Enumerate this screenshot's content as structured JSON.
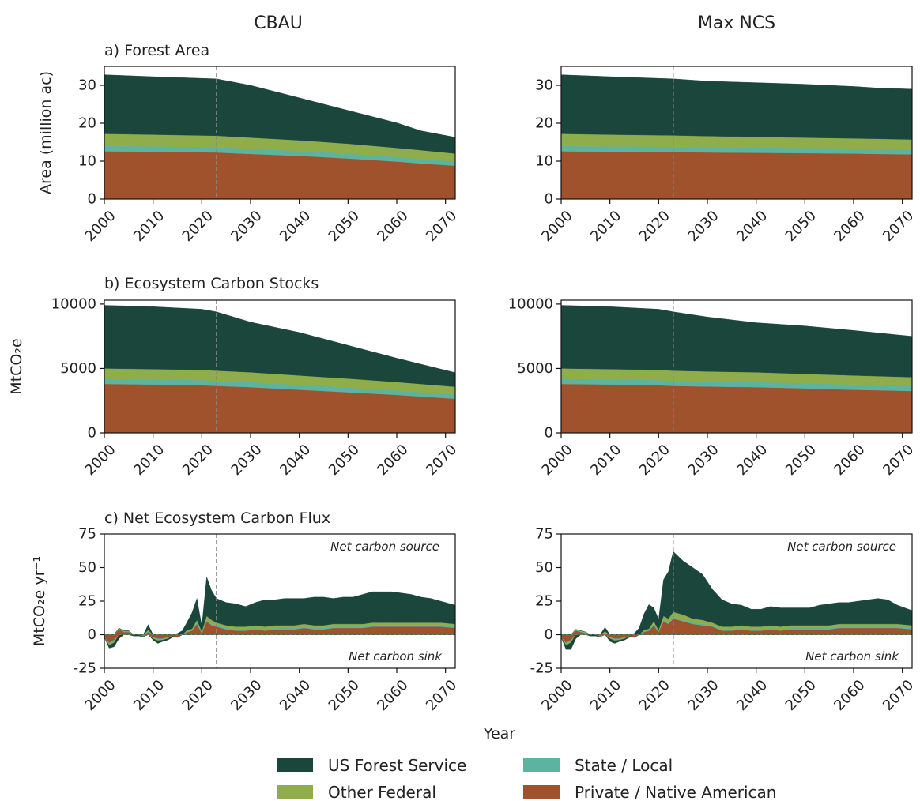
{
  "figure": {
    "column_titles": [
      "CBAU",
      "Max NCS"
    ],
    "xlabel": "Year",
    "colors": {
      "us_forest_service": "#1b463b",
      "state_local": "#5bb3a0",
      "other_federal": "#8fad4a",
      "private_native_american": "#a0522d"
    },
    "vertical_line_year": 2023,
    "legend": [
      {
        "key": "us_forest_service",
        "label": "US Forest Service"
      },
      {
        "key": "state_local",
        "label": "State / Local"
      },
      {
        "key": "other_federal",
        "label": "Other Federal"
      },
      {
        "key": "private_native_american",
        "label": "Private / Native American"
      }
    ]
  },
  "chart_data": [
    {
      "id": "area-cbau",
      "type": "area",
      "stacked": true,
      "title": "a) Forest Area",
      "ylabel": "Area (million ac)",
      "xlim": [
        2000,
        2072
      ],
      "ylim": [
        0,
        35
      ],
      "xticks": [
        2000,
        2010,
        2020,
        2030,
        2040,
        2050,
        2060,
        2070
      ],
      "yticks": [
        0,
        10,
        20,
        30
      ],
      "ytick_labels": [
        "0",
        "10",
        "20",
        "30"
      ],
      "x": [
        2000,
        2010,
        2023,
        2030,
        2040,
        2050,
        2060,
        2065,
        2072
      ],
      "series": [
        {
          "name": "Private / Native American",
          "key": "private_native_american",
          "values": [
            12.6,
            12.5,
            12.3,
            11.9,
            11.4,
            10.7,
            9.9,
            9.4,
            8.8
          ]
        },
        {
          "name": "State / Local",
          "key": "state_local",
          "values": [
            1.4,
            1.4,
            1.4,
            1.4,
            1.3,
            1.3,
            1.2,
            1.2,
            1.1
          ]
        },
        {
          "name": "Other Federal",
          "key": "other_federal",
          "values": [
            3.2,
            3.1,
            3.0,
            2.9,
            2.8,
            2.6,
            2.4,
            2.3,
            2.1
          ]
        },
        {
          "name": "US Forest Service",
          "key": "us_forest_service",
          "values": [
            15.6,
            15.3,
            15.0,
            13.8,
            11.2,
            8.8,
            6.6,
            5.1,
            4.3
          ]
        }
      ]
    },
    {
      "id": "area-maxncs",
      "type": "area",
      "stacked": true,
      "title": "",
      "ylabel": "",
      "xlim": [
        2000,
        2072
      ],
      "ylim": [
        0,
        35
      ],
      "xticks": [
        2000,
        2010,
        2020,
        2030,
        2040,
        2050,
        2060,
        2070
      ],
      "yticks": [
        0,
        10,
        20,
        30
      ],
      "ytick_labels": [
        "0",
        "10",
        "20",
        "30"
      ],
      "x": [
        2000,
        2010,
        2023,
        2030,
        2040,
        2050,
        2060,
        2065,
        2072
      ],
      "series": [
        {
          "name": "Private / Native American",
          "key": "private_native_american",
          "values": [
            12.6,
            12.5,
            12.4,
            12.3,
            12.2,
            12.1,
            12.0,
            11.9,
            11.8
          ]
        },
        {
          "name": "State / Local",
          "key": "state_local",
          "values": [
            1.4,
            1.4,
            1.4,
            1.4,
            1.4,
            1.4,
            1.4,
            1.4,
            1.4
          ]
        },
        {
          "name": "Other Federal",
          "key": "other_federal",
          "values": [
            3.2,
            3.1,
            3.0,
            2.9,
            2.8,
            2.7,
            2.6,
            2.6,
            2.5
          ]
        },
        {
          "name": "US Forest Service",
          "key": "us_forest_service",
          "values": [
            15.6,
            15.3,
            14.9,
            14.5,
            14.3,
            14.1,
            13.7,
            13.4,
            13.3
          ]
        }
      ]
    },
    {
      "id": "stocks-cbau",
      "type": "area",
      "stacked": true,
      "title": "b) Ecosystem Carbon Stocks",
      "ylabel": "MtCO₂e",
      "xlim": [
        2000,
        2072
      ],
      "ylim": [
        0,
        10300
      ],
      "xticks": [
        2000,
        2010,
        2020,
        2030,
        2040,
        2050,
        2060,
        2070
      ],
      "yticks": [
        0,
        5000,
        10000
      ],
      "ytick_labels": [
        "0",
        "5000",
        "10000"
      ],
      "x": [
        2000,
        2010,
        2020,
        2023,
        2030,
        2040,
        2050,
        2060,
        2072
      ],
      "series": [
        {
          "name": "Private / Native American",
          "key": "private_native_american",
          "values": [
            3800,
            3750,
            3700,
            3650,
            3550,
            3350,
            3150,
            2950,
            2650
          ]
        },
        {
          "name": "State / Local",
          "key": "state_local",
          "values": [
            400,
            400,
            400,
            400,
            390,
            380,
            370,
            350,
            330
          ]
        },
        {
          "name": "Other Federal",
          "key": "other_federal",
          "values": [
            800,
            800,
            790,
            780,
            760,
            730,
            700,
            650,
            600
          ]
        },
        {
          "name": "US Forest Service",
          "key": "us_forest_service",
          "values": [
            4900,
            4850,
            4710,
            4570,
            3900,
            3340,
            2580,
            1850,
            1100
          ]
        }
      ]
    },
    {
      "id": "stocks-maxncs",
      "type": "area",
      "stacked": true,
      "title": "",
      "ylabel": "",
      "xlim": [
        2000,
        2072
      ],
      "ylim": [
        0,
        10300
      ],
      "xticks": [
        2000,
        2010,
        2020,
        2030,
        2040,
        2050,
        2060,
        2070
      ],
      "yticks": [
        0,
        5000,
        10000
      ],
      "ytick_labels": [
        "0",
        "5000",
        "10000"
      ],
      "x": [
        2000,
        2010,
        2020,
        2023,
        2030,
        2040,
        2050,
        2060,
        2072
      ],
      "series": [
        {
          "name": "Private / Native American",
          "key": "private_native_american",
          "values": [
            3800,
            3750,
            3700,
            3650,
            3600,
            3550,
            3450,
            3350,
            3250
          ]
        },
        {
          "name": "State / Local",
          "key": "state_local",
          "values": [
            400,
            400,
            400,
            400,
            400,
            400,
            400,
            400,
            400
          ]
        },
        {
          "name": "Other Federal",
          "key": "other_federal",
          "values": [
            800,
            800,
            790,
            780,
            770,
            750,
            730,
            710,
            680
          ]
        },
        {
          "name": "US Forest Service",
          "key": "us_forest_service",
          "values": [
            4900,
            4850,
            4710,
            4570,
            4230,
            3850,
            3720,
            3490,
            3170
          ]
        }
      ]
    },
    {
      "id": "flux-cbau",
      "type": "area",
      "stacked": true,
      "title": "c) Net Ecosystem Carbon Flux",
      "ylabel": "MtCO₂e yr⁻¹",
      "xlim": [
        2000,
        2072
      ],
      "ylim": [
        -25,
        75
      ],
      "xticks": [
        2000,
        2010,
        2020,
        2030,
        2040,
        2050,
        2060,
        2070
      ],
      "yticks": [
        -25,
        0,
        25,
        50,
        75
      ],
      "ytick_labels": [
        "-25",
        "0",
        "25",
        "50",
        "75"
      ],
      "annotations": {
        "top": "Net carbon source",
        "bottom": "Net carbon sink"
      },
      "x": [
        2000,
        2001,
        2002,
        2003,
        2004,
        2005,
        2006,
        2007,
        2008,
        2009,
        2010,
        2011,
        2012,
        2013,
        2014,
        2015,
        2016,
        2017,
        2018,
        2019,
        2020,
        2021,
        2022,
        2023,
        2025,
        2027,
        2029,
        2031,
        2033,
        2035,
        2037,
        2039,
        2041,
        2043,
        2045,
        2047,
        2049,
        2051,
        2053,
        2055,
        2057,
        2059,
        2061,
        2063,
        2065,
        2067,
        2069,
        2072
      ],
      "series": [
        {
          "name": "Private / Native American",
          "key": "private_native_american",
          "values": [
            -2,
            -6,
            -4,
            4,
            2,
            2,
            0,
            0,
            -1,
            2,
            -2,
            -3,
            -3,
            -2,
            -1,
            -2,
            0,
            2,
            3,
            8,
            1,
            10,
            7,
            6,
            4,
            3,
            3,
            4,
            3,
            4,
            4,
            4,
            5,
            4,
            4,
            5,
            5,
            5,
            5,
            6,
            6,
            6,
            6,
            6,
            6,
            6,
            6,
            5
          ]
        },
        {
          "name": "State / Local",
          "key": "state_local",
          "values": [
            0,
            -1,
            -1,
            0.5,
            0.5,
            0.5,
            0,
            0,
            0,
            0.5,
            -0.5,
            -0.5,
            -0.5,
            -0.5,
            0,
            0,
            0,
            0.5,
            0.5,
            1,
            0.5,
            1,
            1,
            1,
            1,
            1,
            1,
            1,
            1,
            1,
            1,
            1,
            1,
            1,
            1,
            1,
            1,
            1,
            1,
            1,
            1,
            1,
            1,
            1,
            1,
            1,
            1,
            1
          ]
        },
        {
          "name": "Other Federal",
          "key": "other_federal",
          "values": [
            0,
            -1,
            -1,
            0.5,
            0.5,
            0.5,
            0,
            0,
            -0.5,
            1,
            -0.5,
            -1,
            -0.5,
            -0.5,
            0,
            0,
            0,
            1,
            1,
            2,
            1,
            3,
            3,
            2,
            2,
            2,
            2,
            2,
            2,
            2,
            2,
            2,
            2,
            2,
            2,
            2,
            2,
            2,
            2,
            2,
            2,
            2,
            2,
            2,
            2,
            2,
            2,
            2
          ]
        },
        {
          "name": "US Forest Service",
          "key": "us_forest_service",
          "values": [
            0,
            -2,
            -3,
            -3,
            0,
            0,
            -1,
            -1,
            0,
            4,
            -1,
            -2,
            -1,
            -1,
            -1,
            1,
            3,
            6,
            12,
            16,
            4,
            29,
            22,
            18,
            17,
            17,
            15,
            17,
            20,
            19,
            20,
            20,
            19,
            21,
            21,
            19,
            20,
            20,
            22,
            23,
            23,
            23,
            22,
            21,
            19,
            18,
            16,
            14
          ]
        }
      ]
    },
    {
      "id": "flux-maxncs",
      "type": "area",
      "stacked": true,
      "title": "",
      "ylabel": "",
      "xlim": [
        2000,
        2072
      ],
      "ylim": [
        -25,
        75
      ],
      "xticks": [
        2000,
        2010,
        2020,
        2030,
        2040,
        2050,
        2060,
        2070
      ],
      "yticks": [
        -25,
        0,
        25,
        50,
        75
      ],
      "ytick_labels": [
        "-25",
        "0",
        "25",
        "50",
        "75"
      ],
      "annotations": {
        "top": "Net carbon source",
        "bottom": "Net carbon sink"
      },
      "x": [
        2000,
        2001,
        2002,
        2003,
        2004,
        2005,
        2006,
        2007,
        2008,
        2009,
        2010,
        2011,
        2012,
        2013,
        2014,
        2015,
        2016,
        2017,
        2018,
        2019,
        2020,
        2021,
        2022,
        2023,
        2025,
        2027,
        2029,
        2031,
        2033,
        2035,
        2037,
        2039,
        2041,
        2043,
        2045,
        2047,
        2049,
        2051,
        2053,
        2055,
        2057,
        2059,
        2061,
        2063,
        2065,
        2067,
        2069,
        2072
      ],
      "series": [
        {
          "name": "Private / Native American",
          "key": "private_native_american",
          "values": [
            -2,
            -6,
            -4,
            3,
            2,
            1,
            0,
            0,
            -1,
            1,
            -2,
            -3,
            -3,
            -2,
            -1,
            -2,
            0,
            2,
            3,
            7,
            2,
            10,
            8,
            12,
            10,
            8,
            7,
            6,
            3,
            3,
            4,
            3,
            3,
            4,
            3,
            4,
            4,
            4,
            4,
            4,
            5,
            5,
            5,
            5,
            5,
            5,
            5,
            4
          ]
        },
        {
          "name": "State / Local",
          "key": "state_local",
          "values": [
            0,
            -1,
            -1,
            0.5,
            0.5,
            0.5,
            0,
            0,
            0,
            0.5,
            -0.5,
            -0.5,
            -0.5,
            -0.5,
            0,
            0,
            0,
            0.5,
            0.5,
            1,
            0.5,
            1,
            1,
            1,
            1,
            1,
            1,
            1,
            1,
            1,
            1,
            1,
            1,
            1,
            1,
            1,
            1,
            1,
            1,
            1,
            1,
            1,
            1,
            1,
            1,
            1,
            1,
            1
          ]
        },
        {
          "name": "Other Federal",
          "key": "other_federal",
          "values": [
            0,
            -1,
            -1,
            0.5,
            0.5,
            0.5,
            0,
            0,
            -0.5,
            1,
            -0.5,
            -1,
            -0.5,
            -0.5,
            0,
            0,
            0,
            1,
            1,
            2,
            1,
            3,
            3,
            4,
            4,
            3,
            3,
            2,
            2,
            2,
            2,
            2,
            2,
            2,
            2,
            2,
            2,
            2,
            2,
            2,
            2,
            2,
            2,
            2,
            2,
            2,
            2,
            2
          ]
        },
        {
          "name": "US Forest Service",
          "key": "us_forest_service",
          "values": [
            0,
            -3,
            -5,
            -3,
            0,
            0,
            -1,
            -1,
            0,
            3,
            -2,
            -2,
            -1,
            -1,
            -1,
            1,
            5,
            12,
            18,
            10,
            8,
            27,
            35,
            45,
            40,
            38,
            34,
            25,
            20,
            17,
            15,
            13,
            13,
            14,
            14,
            13,
            13,
            13,
            15,
            16,
            16,
            16,
            17,
            18,
            19,
            18,
            14,
            11
          ]
        }
      ]
    }
  ]
}
